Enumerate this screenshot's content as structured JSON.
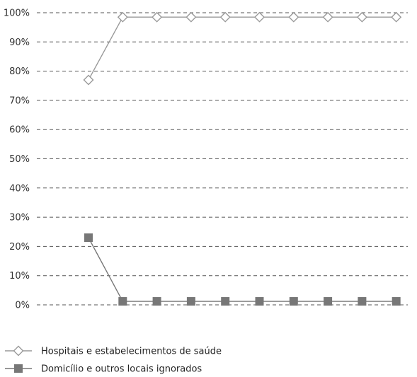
{
  "chart_data": {
    "type": "line",
    "x": [
      1,
      2,
      3,
      4,
      5,
      6,
      7,
      8,
      9,
      10
    ],
    "ylim": [
      0,
      100
    ],
    "yticks": [
      0,
      10,
      20,
      30,
      40,
      50,
      60,
      70,
      80,
      90,
      100
    ],
    "ytick_labels": [
      "0%",
      "10%",
      "20%",
      "30%",
      "40%",
      "50%",
      "60%",
      "70%",
      "80%",
      "90%",
      "100%"
    ],
    "grid": true,
    "legend_position": "bottom-left",
    "series": [
      {
        "name": "Hospitais e estabelecimentos de saúde",
        "values": [
          77,
          98.5,
          98.5,
          98.5,
          98.5,
          98.5,
          98.5,
          98.5,
          98.5,
          98.5
        ],
        "marker": "open-diamond",
        "color": "#999999"
      },
      {
        "name": "Domicílio e outros locais ignorados",
        "values": [
          23,
          1.2,
          1.2,
          1.2,
          1.2,
          1.2,
          1.2,
          1.2,
          1.2,
          1.2
        ],
        "marker": "filled-square",
        "color": "#777777"
      }
    ]
  }
}
